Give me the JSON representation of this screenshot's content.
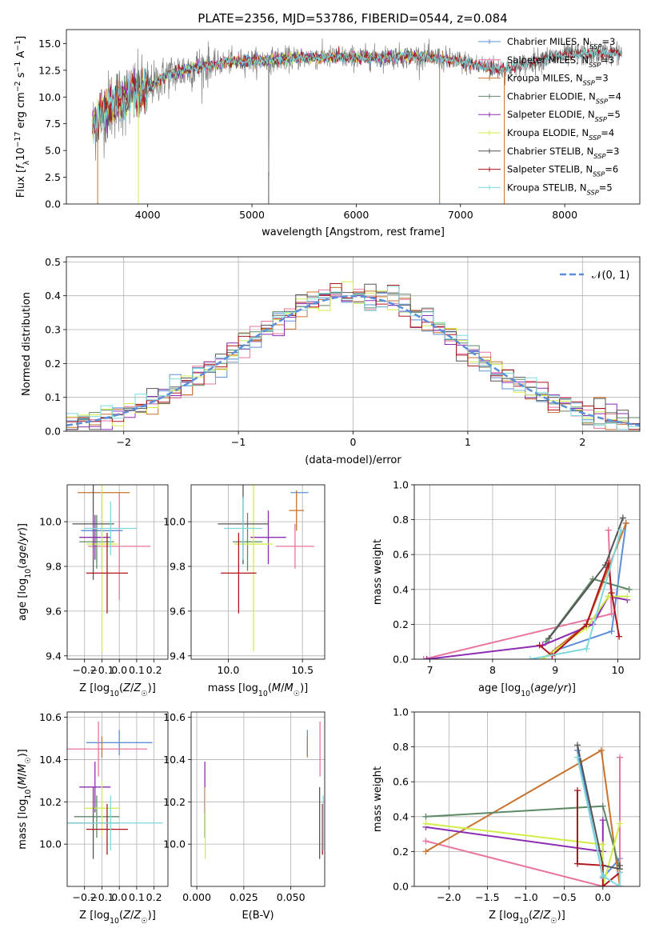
{
  "figure_title": "PLATE=2356, MJD=53786, FIBERID=0544, z=0.084",
  "colors": {
    "Chabrier MILES": "#5b8fd9",
    "Salpeter MILES": "#e8749f",
    "Kroupa MILES": "#c8732f",
    "Chabrier ELODIE": "#5f8a68",
    "Salpeter ELODIE": "#8c2db4",
    "Kroupa ELODIE": "#d2ed4a",
    "Chabrier STELIB": "#555555",
    "Salpeter STELIB": "#b0151c",
    "Kroupa STELIB": "#7fd9dc",
    "data": "#808080",
    "normal": "#5b8fd9"
  },
  "chart_data": [
    {
      "type": "line",
      "title": "PLATE=2356, MJD=53786, FIBERID=0544, z=0.084",
      "xlabel": "wavelength [Angstrom, rest frame]",
      "ylabel": "Flux [f_λ 10^-17 erg cm^-2 s^-1 A^-1]",
      "xlim": [
        3220,
        8720
      ],
      "ylim": [
        0,
        16.3
      ],
      "xticks": [
        4000,
        5000,
        6000,
        7000,
        8000
      ],
      "xtick_labels": [
        "4000",
        "5000",
        "6000",
        "7000",
        "8000"
      ],
      "yticks": [
        0,
        2.5,
        5,
        7.5,
        10,
        12.5,
        15
      ],
      "ytick_labels": [
        "0.0",
        "2.5",
        "5.0",
        "7.5",
        "10.0",
        "12.5",
        "15.0"
      ],
      "grid": false,
      "legend_position": "lower-right",
      "continuum": {
        "x": [
          3470,
          3550,
          3700,
          3850,
          3950,
          4050,
          4200,
          4400,
          4600,
          4800,
          5000,
          5200,
          5400,
          5600,
          5800,
          6000,
          6200,
          6400,
          6600,
          6800,
          7000,
          7200,
          7400,
          7600,
          7800,
          8000,
          8200,
          8400,
          8550
        ],
        "y": [
          7.0,
          8.5,
          9.6,
          10.1,
          10.4,
          11.2,
          12.1,
          12.6,
          13.0,
          13.3,
          13.4,
          13.5,
          13.6,
          13.7,
          13.7,
          13.7,
          13.7,
          13.8,
          13.8,
          13.6,
          13.3,
          12.9,
          12.6,
          13.0,
          13.6,
          13.9,
          14.0,
          14.1,
          14.1
        ]
      },
      "model_series": [
        {
          "name": "Chabrier MILES, N_SSP=3",
          "display": "Chabrier MILES, N",
          "sub": "SSP",
          "n": "=3",
          "xmax": 7420
        },
        {
          "name": "Salpeter MILES, N_SSP=3",
          "display": "Salpeter MILES, N",
          "sub": "SSP",
          "n": "=3",
          "xmax": 7420
        },
        {
          "name": "Kroupa MILES, N_SSP=3",
          "display": "Kroupa MILES, N",
          "sub": "SSP",
          "n": "=3",
          "xmax": 7420
        },
        {
          "name": "Chabrier ELODIE, N_SSP=4",
          "display": "Chabrier ELODIE, N",
          "sub": "SSP",
          "n": "=4",
          "xmax": 6800
        },
        {
          "name": "Salpeter ELODIE, N_SSP=5",
          "display": "Salpeter ELODIE, N",
          "sub": "SSP",
          "n": "=5",
          "xmax": 6800
        },
        {
          "name": "Kroupa ELODIE, N_SSP=4",
          "display": "Kroupa ELODIE, N",
          "sub": "SSP",
          "n": "=4",
          "xmax": 6800
        },
        {
          "name": "Chabrier STELIB, N_SSP=3",
          "display": "Chabrier STELIB, N",
          "sub": "SSP",
          "n": "=3",
          "xmax": 8550
        },
        {
          "name": "Salpeter STELIB, N_SSP=6",
          "display": "Salpeter STELIB, N",
          "sub": "SSP",
          "n": "=6",
          "xmax": 8550
        },
        {
          "name": "Kroupa STELIB, N_SSP=5",
          "display": "Kroupa STELIB, N",
          "sub": "SSP",
          "n": "=5",
          "xmax": 8550
        }
      ],
      "vertical_drops": [
        3520,
        3910,
        5160,
        6800,
        7420
      ]
    },
    {
      "type": "histogram",
      "xlabel": "(data-model)/error",
      "ylabel": "Normed distribution",
      "xlim": [
        -2.5,
        2.5
      ],
      "ylim": [
        0,
        0.515
      ],
      "xticks": [
        -2,
        -1,
        0,
        1,
        2
      ],
      "xtick_labels": [
        "−2",
        "−1",
        "0",
        "1",
        "2"
      ],
      "yticks": [
        0,
        0.1,
        0.2,
        0.3,
        0.4,
        0.5
      ],
      "ytick_labels": [
        "0.0",
        "0.1",
        "0.2",
        "0.3",
        "0.4",
        "0.5"
      ],
      "grid": true,
      "legend": "𝒩(0, 1)",
      "legend_position": "top-right",
      "bin_width": 0.1
    },
    {
      "type": "scatter",
      "xlabel": "Z [log10(Z/Z☉)]",
      "ylabel": "age  [log10(age/yr)]",
      "xlim": [
        -0.3,
        0.28
      ],
      "ylim": [
        9.385,
        10.165
      ],
      "xticks": [
        -0.2,
        -0.1,
        0.0,
        0.1,
        0.2
      ],
      "xtick_labels": [
        "−0.2",
        "−0.1",
        "0.0",
        "0.1",
        "0.2"
      ],
      "yticks": [
        9.4,
        9.6,
        9.8,
        10.0
      ],
      "ytick_labels": [
        "9.4",
        "9.6",
        "9.8",
        "10.0"
      ],
      "grid": true,
      "points": [
        {
          "model": "Chabrier MILES",
          "x": -0.1,
          "xerr": 0.12,
          "y": 9.96,
          "yerr": 0.17
        },
        {
          "model": "Salpeter MILES",
          "x": 0.0,
          "xerr": 0.18,
          "y": 9.89,
          "yerr": 0.24
        },
        {
          "model": "Kroupa MILES",
          "x": -0.09,
          "xerr": 0.15,
          "y": 10.13,
          "yerr": 0.0
        },
        {
          "model": "Chabrier ELODIE",
          "x": -0.13,
          "xerr": 0.1,
          "y": 9.91,
          "yerr": 0.12
        },
        {
          "model": "Salpeter ELODIE",
          "x": -0.14,
          "xerr": 0.09,
          "y": 9.93,
          "yerr": 0.1
        },
        {
          "model": "Kroupa ELODIE",
          "x": -0.1,
          "xerr": 0.09,
          "y": 9.9,
          "yerr": 0.48
        },
        {
          "model": "Chabrier STELIB",
          "x": -0.15,
          "xerr": 0.12,
          "y": 9.99,
          "yerr": 0.25
        },
        {
          "model": "Salpeter STELIB",
          "x": -0.07,
          "xerr": 0.12,
          "y": 9.77,
          "yerr": 0.18
        },
        {
          "model": "Kroupa STELIB",
          "x": -0.05,
          "xerr": 0.15,
          "y": 9.97,
          "yerr": 0.12
        }
      ]
    },
    {
      "type": "scatter",
      "xlabel": "mass [log10(M/M☉)]",
      "ylabel": "",
      "xlim": [
        9.75,
        10.65
      ],
      "ylim": [
        9.385,
        10.165
      ],
      "xticks": [
        10.0,
        10.5
      ],
      "xtick_labels": [
        "10.0",
        "10.5"
      ],
      "yticks": [
        9.4,
        9.6,
        9.8,
        10.0
      ],
      "ytick_labels": [
        "9.4",
        "9.6",
        "9.8",
        "10.0"
      ],
      "grid": true,
      "points": [
        {
          "model": "Chabrier MILES",
          "x": 10.48,
          "xerr": 0.06,
          "y": 10.13,
          "yerr": 0.0
        },
        {
          "model": "Salpeter MILES",
          "x": 10.45,
          "xerr": 0.13,
          "y": 9.89,
          "yerr": 0.1
        },
        {
          "model": "Kroupa MILES",
          "x": 10.46,
          "xerr": 0.05,
          "y": 10.05,
          "yerr": 0.09
        },
        {
          "model": "Chabrier ELODIE",
          "x": 10.13,
          "xerr": 0.1,
          "y": 9.91,
          "yerr": 0.13
        },
        {
          "model": "Salpeter ELODIE",
          "x": 10.27,
          "xerr": 0.12,
          "y": 9.93,
          "yerr": 0.12
        },
        {
          "model": "Kroupa ELODIE",
          "x": 10.17,
          "xerr": 0.13,
          "y": 9.9,
          "yerr": 0.48
        },
        {
          "model": "Chabrier STELIB",
          "x": 10.1,
          "xerr": 0.17,
          "y": 9.99,
          "yerr": 0.18
        },
        {
          "model": "Salpeter STELIB",
          "x": 10.07,
          "xerr": 0.12,
          "y": 9.77,
          "yerr": 0.18
        },
        {
          "model": "Kroupa STELIB",
          "x": 10.1,
          "xerr": 0.13,
          "y": 9.97,
          "yerr": 0.14
        }
      ]
    },
    {
      "type": "line",
      "xlabel": "age  [log10(age/yr)]",
      "ylabel": "mass weight",
      "xlim": [
        6.75,
        10.35
      ],
      "ylim": [
        0,
        1.0
      ],
      "xticks": [
        7,
        8,
        9,
        10
      ],
      "xtick_labels": [
        "7",
        "8",
        "9",
        "10"
      ],
      "yticks": [
        0,
        0.2,
        0.4,
        0.6,
        0.8,
        1.0
      ],
      "ytick_labels": [
        "0.0",
        "0.2",
        "0.4",
        "0.6",
        "0.8",
        "1.0"
      ],
      "grid": true,
      "series": [
        {
          "model": "Chabrier MILES",
          "x": [
            9.0,
            9.9,
            10.13
          ],
          "y": [
            0.05,
            0.16,
            0.78
          ]
        },
        {
          "model": "Salpeter MILES",
          "x": [
            6.9,
            9.9,
            9.85
          ],
          "y": [
            0.0,
            0.26,
            0.74
          ]
        },
        {
          "model": "Kroupa MILES",
          "x": [
            8.8,
            9.5,
            10.13
          ],
          "y": [
            0.0,
            0.2,
            0.78
          ]
        },
        {
          "model": "Chabrier ELODIE",
          "x": [
            8.85,
            9.6,
            10.18
          ],
          "y": [
            0.1,
            0.46,
            0.4
          ]
        },
        {
          "model": "Salpeter ELODIE",
          "x": [
            6.95,
            8.8,
            9.6,
            9.85,
            10.15
          ],
          "y": [
            0.0,
            0.08,
            0.2,
            0.36,
            0.34
          ]
        },
        {
          "model": "Kroupa ELODIE",
          "x": [
            8.8,
            9.5,
            9.85,
            10.15
          ],
          "y": [
            0.0,
            0.18,
            0.36,
            0.36
          ]
        },
        {
          "model": "Chabrier STELIB",
          "x": [
            8.9,
            9.8,
            10.08
          ],
          "y": [
            0.12,
            0.54,
            0.81
          ]
        },
        {
          "model": "Salpeter STELIB",
          "x": [
            8.75,
            8.95,
            9.5,
            9.85,
            9.9,
            10.02
          ],
          "y": [
            0.08,
            0.02,
            0.2,
            0.55,
            0.38,
            0.13
          ]
        },
        {
          "model": "Kroupa STELIB",
          "x": [
            8.6,
            9.5,
            10.05
          ],
          "y": [
            0.0,
            0.06,
            0.74
          ]
        }
      ]
    },
    {
      "type": "scatter",
      "xlabel": "Z [log10(Z/Z☉)]",
      "ylabel": "mass [log10(M/M☉)]",
      "xlim": [
        -0.3,
        0.28
      ],
      "ylim": [
        9.8,
        10.625
      ],
      "xticks": [
        -0.2,
        -0.1,
        0.0,
        0.1,
        0.2
      ],
      "xtick_labels": [
        "−0.2",
        "−0.1",
        "0.0",
        "0.1",
        "0.2"
      ],
      "yticks": [
        10.0,
        10.2,
        10.4,
        10.6
      ],
      "ytick_labels": [
        "10.0",
        "10.2",
        "10.4",
        "10.6"
      ],
      "grid": true,
      "points": [
        {
          "model": "Chabrier MILES",
          "x": 0.0,
          "xerr": 0.19,
          "y": 10.48,
          "yerr": 0.06
        },
        {
          "model": "Salpeter MILES",
          "x": -0.12,
          "xerr": 0.28,
          "y": 10.45,
          "yerr": 0.13
        },
        {
          "model": "Kroupa MILES",
          "x": -0.1,
          "xerr": 0.0,
          "y": 10.46,
          "yerr": 0.05
        },
        {
          "model": "Chabrier ELODIE",
          "x": -0.13,
          "xerr": 0.13,
          "y": 10.13,
          "yerr": 0.1
        },
        {
          "model": "Salpeter ELODIE",
          "x": -0.14,
          "xerr": 0.09,
          "y": 10.27,
          "yerr": 0.12
        },
        {
          "model": "Kroupa ELODIE",
          "x": -0.1,
          "xerr": 0.1,
          "y": 10.17,
          "yerr": 0.13
        },
        {
          "model": "Chabrier STELIB",
          "x": -0.15,
          "xerr": 0.15,
          "y": 10.1,
          "yerr": 0.17
        },
        {
          "model": "Salpeter STELIB",
          "x": -0.07,
          "xerr": 0.12,
          "y": 10.07,
          "yerr": 0.12
        },
        {
          "model": "Kroupa STELIB",
          "x": -0.05,
          "xerr": 0.3,
          "y": 10.1,
          "yerr": 0.13
        }
      ]
    },
    {
      "type": "scatter",
      "xlabel": "E(B-V)",
      "ylabel": "",
      "xlim": [
        -0.003,
        0.068
      ],
      "ylim": [
        9.8,
        10.625
      ],
      "xticks": [
        0.0,
        0.025,
        0.05
      ],
      "xtick_labels": [
        "0.000",
        "0.025",
        "0.050"
      ],
      "yticks": [
        10.0,
        10.2,
        10.4,
        10.6
      ],
      "ytick_labels": [
        "10.0",
        "10.2",
        "10.4",
        "10.6"
      ],
      "grid": true,
      "points": [
        {
          "model": "Chabrier MILES",
          "x": 0.0588,
          "xerr": 0.0,
          "y": 10.48,
          "yerr": 0.06
        },
        {
          "model": "Salpeter MILES",
          "x": 0.0655,
          "xerr": 0.0,
          "y": 10.45,
          "yerr": 0.13
        },
        {
          "model": "Kroupa MILES",
          "x": 0.0588,
          "xerr": 0.0,
          "y": 10.46,
          "yerr": 0.05
        },
        {
          "model": "Chabrier ELODIE",
          "x": 0.0043,
          "xerr": 0.0,
          "y": 10.13,
          "yerr": 0.1
        },
        {
          "model": "Salpeter ELODIE",
          "x": 0.0043,
          "xerr": 0.0,
          "y": 10.27,
          "yerr": 0.12
        },
        {
          "model": "Kroupa ELODIE",
          "x": 0.0045,
          "xerr": 0.0,
          "y": 10.1,
          "yerr": 0.17
        },
        {
          "model": "Chabrier STELIB",
          "x": 0.0653,
          "xerr": 0.0,
          "y": 10.1,
          "yerr": 0.17
        },
        {
          "model": "Salpeter STELIB",
          "x": 0.0668,
          "xerr": 0.0,
          "y": 10.07,
          "yerr": 0.12
        },
        {
          "model": "Kroupa STELIB",
          "x": 0.0672,
          "xerr": 0.0,
          "y": 10.1,
          "yerr": 0.13
        }
      ]
    },
    {
      "type": "line",
      "xlabel": "Z [log10(Z/Z☉)]",
      "ylabel": "mass weight",
      "xlim": [
        -2.45,
        0.48
      ],
      "ylim": [
        0,
        1.0
      ],
      "xticks": [
        -2.0,
        -1.5,
        -1.0,
        -0.5,
        0.0
      ],
      "xtick_labels": [
        "−2.0",
        "−1.5",
        "−1.0",
        "−0.5",
        "0.0"
      ],
      "yticks": [
        0,
        0.2,
        0.4,
        0.6,
        0.8,
        1.0
      ],
      "ytick_labels": [
        "0.0",
        "0.2",
        "0.4",
        "0.6",
        "0.8",
        "1.0"
      ],
      "grid": true,
      "series": [
        {
          "model": "Chabrier MILES",
          "x": [
            -0.33,
            0.0,
            0.22
          ],
          "y": [
            0.78,
            0.05,
            0.16
          ]
        },
        {
          "model": "Salpeter MILES",
          "x": [
            -2.3,
            0.0,
            0.22,
            0.22
          ],
          "y": [
            0.26,
            0.0,
            0.0,
            0.74
          ]
        },
        {
          "model": "Kroupa MILES",
          "x": [
            -2.3,
            -0.02,
            0.22
          ],
          "y": [
            0.2,
            0.78,
            0.0
          ]
        },
        {
          "model": "Chabrier ELODIE",
          "x": [
            -2.3,
            0.0,
            0.22
          ],
          "y": [
            0.4,
            0.46,
            0.1
          ]
        },
        {
          "model": "Salpeter ELODIE",
          "x": [
            -2.3,
            0.0,
            0.0
          ],
          "y": [
            0.34,
            0.2,
            0.38
          ]
        },
        {
          "model": "Kroupa ELODIE",
          "x": [
            -2.3,
            0.0,
            0.0,
            0.22
          ],
          "y": [
            0.36,
            0.24,
            0.0,
            0.36
          ]
        },
        {
          "model": "Chabrier STELIB",
          "x": [
            -0.33,
            0.0,
            0.22,
            0.22
          ],
          "y": [
            0.81,
            0.12,
            0.1,
            0.12
          ]
        },
        {
          "model": "Salpeter STELIB",
          "x": [
            -0.33,
            -0.33,
            0.0,
            0.0,
            0.22
          ],
          "y": [
            0.55,
            0.13,
            0.12,
            0.0,
            0.08
          ]
        },
        {
          "model": "Kroupa STELIB",
          "x": [
            -0.33,
            0.0,
            0.22,
            0.22
          ],
          "y": [
            0.74,
            0.06,
            0.0,
            0.08
          ]
        }
      ]
    }
  ]
}
